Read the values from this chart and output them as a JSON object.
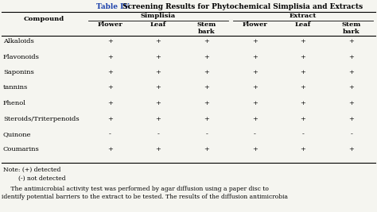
{
  "title_blue": "Table IV.",
  "title_rest": " Screening Results for Phytochemical Simplisia and Extracts",
  "col_groups": [
    "Simplisia",
    "Extract"
  ],
  "sub_headers": [
    "Flower",
    "Leaf",
    "Stem\nbark",
    "Flower",
    "Leaf",
    "Stem\nbark"
  ],
  "row_header": "Compound",
  "compounds": [
    "Alkaloids",
    "Flavonoids",
    "Saponins",
    "tannins",
    "Phenol",
    "Steroids/Triterpenoids",
    "Quinone",
    "Coumarins"
  ],
  "data": [
    [
      "+",
      "+",
      "+",
      "+",
      "+",
      "+"
    ],
    [
      "+",
      "+",
      "+",
      "+",
      "+",
      "+"
    ],
    [
      "+",
      "+",
      "+",
      "+",
      "+",
      "+"
    ],
    [
      "+",
      "+",
      "+",
      "+",
      "+",
      "+"
    ],
    [
      "+",
      "+",
      "+",
      "+",
      "+",
      "+"
    ],
    [
      "+",
      "+",
      "+",
      "+",
      "+",
      "+"
    ],
    [
      "-",
      "-",
      "-",
      "-",
      "-",
      "-"
    ],
    [
      "+",
      "+",
      "+",
      "+",
      "+",
      "+"
    ]
  ],
  "note_lines": [
    "Note: (+) detected",
    "        (-) not detected"
  ],
  "body_line1": "    The antimicrobial activity test was performed by agar diffusion using a paper disc to",
  "body_line2": "identify potential barriers to the extract to be tested. The results of the diffusion antimicrobia",
  "title_color": "#1a3faa",
  "bg_color": "#f5f5f0",
  "text_color": "#000000"
}
